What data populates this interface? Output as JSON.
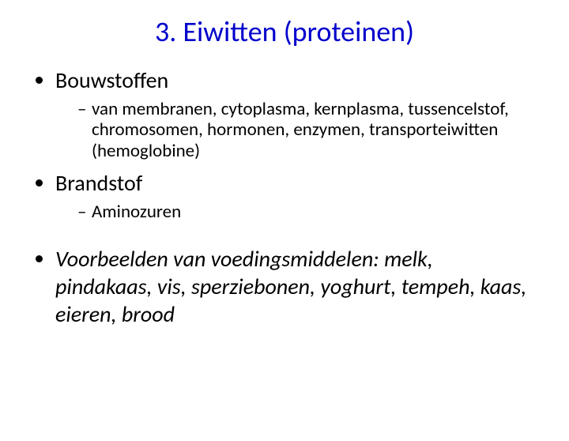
{
  "title": "3. Eiwitten (proteinen)",
  "title_color": "#0000cc",
  "title_fontsize": 36,
  "body_fontsize_lvl1": 28,
  "body_fontsize_lvl2": 23,
  "text_color": "#000000",
  "background_color": "#ffffff",
  "items": {
    "i0": {
      "label": "Bouwstoffen",
      "sub": {
        "s0": "van membranen, cytoplasma, kernplasma, tussencelstof, chromosomen, hormonen, enzymen, transporteiwitten (hemoglobine)"
      }
    },
    "i1": {
      "label": "Brandstof",
      "sub": {
        "s0": "Aminozuren"
      }
    },
    "i2": {
      "label": "Voorbeelden van voedingsmiddelen: melk, pindakaas, vis, sperziebonen, yoghurt, tempeh, kaas, eieren, brood",
      "italic": true
    }
  }
}
